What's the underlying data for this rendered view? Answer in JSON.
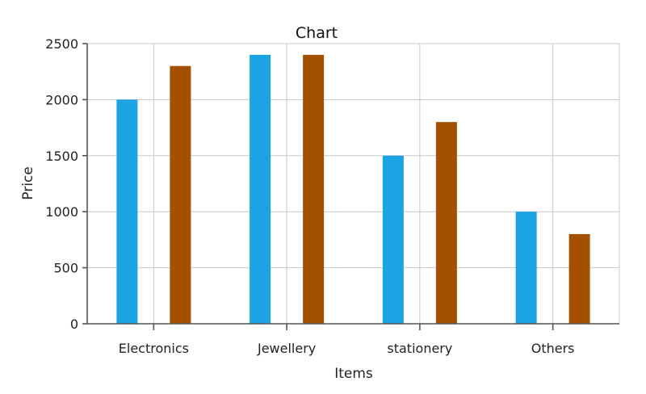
{
  "chart_data": {
    "type": "bar",
    "title": "Chart",
    "xlabel": "Items",
    "ylabel": "Price",
    "categories": [
      "Electronics",
      "Jewellery",
      "stationery",
      "Others"
    ],
    "series": [
      {
        "values": [
          2000,
          2400,
          1500,
          1000
        ],
        "color": "#1CA3E3"
      },
      {
        "values": [
          2300,
          2400,
          1800,
          800
        ],
        "color": "#A35000"
      }
    ],
    "ylim": [
      0,
      2500
    ],
    "yticks": [
      0,
      500,
      1000,
      1500,
      2000,
      2500
    ],
    "grid": true,
    "legend": "none"
  }
}
